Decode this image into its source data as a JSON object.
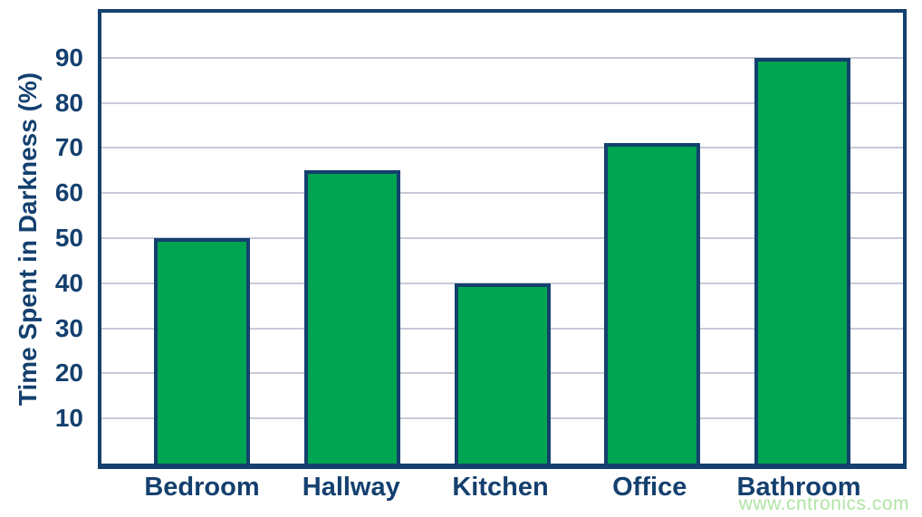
{
  "chart_data": {
    "type": "bar",
    "title": "",
    "categories": [
      "Bedroom",
      "Hallway",
      "Kitchen",
      "Office",
      "Bathroom"
    ],
    "values": [
      50,
      65,
      40,
      71,
      90
    ],
    "xlabel": "",
    "ylabel": "Time Spent in Darkness (%)",
    "ylim": [
      0,
      100
    ],
    "ytick_step": 10,
    "yticks": [
      10,
      20,
      30,
      40,
      50,
      60,
      70,
      80,
      90
    ],
    "grid": true,
    "legend": false,
    "colors": {
      "bar_fill": "#00a551",
      "bar_border": "#14406e",
      "axis": "#14406e",
      "text": "#14406e",
      "gridline": "#c7cbd7",
      "background": "#ffffff"
    }
  },
  "watermark": {
    "text": "www.cntronics.com",
    "color": "#a9e29b"
  }
}
